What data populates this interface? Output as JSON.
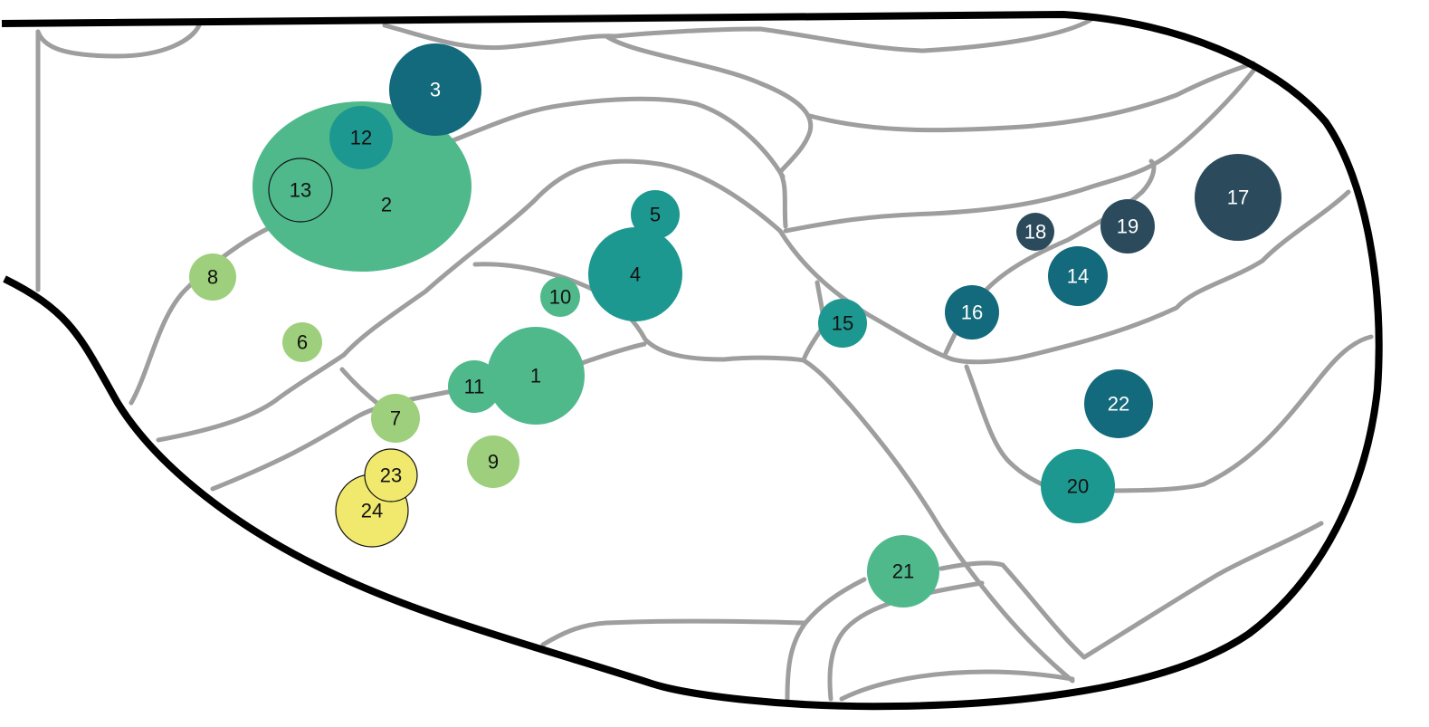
{
  "palette": {
    "road": "#9e9e9e",
    "border": "#000000",
    "background": "#ffffff"
  },
  "nodes": [
    {
      "id": "1",
      "color": "#4fb98c",
      "text_color": "#111111",
      "outlined": false
    },
    {
      "id": "2",
      "color": "#4fb98c",
      "text_color": "#111111",
      "outlined": false
    },
    {
      "id": "3",
      "color": "#136a7c",
      "text_color": "#ffffff",
      "outlined": false
    },
    {
      "id": "4",
      "color": "#1d9890",
      "text_color": "#111111",
      "outlined": false
    },
    {
      "id": "5",
      "color": "#1d9890",
      "text_color": "#111111",
      "outlined": false
    },
    {
      "id": "6",
      "color": "#9ecf7c",
      "text_color": "#111111",
      "outlined": false
    },
    {
      "id": "7",
      "color": "#9ecf7c",
      "text_color": "#111111",
      "outlined": false
    },
    {
      "id": "8",
      "color": "#9ecf7c",
      "text_color": "#111111",
      "outlined": false
    },
    {
      "id": "9",
      "color": "#9ecf7c",
      "text_color": "#111111",
      "outlined": false
    },
    {
      "id": "10",
      "color": "#4fb98c",
      "text_color": "#111111",
      "outlined": false
    },
    {
      "id": "11",
      "color": "#4fb98c",
      "text_color": "#111111",
      "outlined": false
    },
    {
      "id": "12",
      "color": "#1d9890",
      "text_color": "#111111",
      "outlined": false
    },
    {
      "id": "13",
      "color": "#4fb98c",
      "text_color": "#111111",
      "outlined": true
    },
    {
      "id": "14",
      "color": "#136a7c",
      "text_color": "#ffffff",
      "outlined": false
    },
    {
      "id": "15",
      "color": "#1d9890",
      "text_color": "#111111",
      "outlined": false
    },
    {
      "id": "16",
      "color": "#136a7c",
      "text_color": "#ffffff",
      "outlined": false
    },
    {
      "id": "17",
      "color": "#2b4b5d",
      "text_color": "#ffffff",
      "outlined": false
    },
    {
      "id": "18",
      "color": "#2b4b5d",
      "text_color": "#ffffff",
      "outlined": false
    },
    {
      "id": "19",
      "color": "#2b4b5d",
      "text_color": "#ffffff",
      "outlined": false
    },
    {
      "id": "20",
      "color": "#1d9890",
      "text_color": "#111111",
      "outlined": false
    },
    {
      "id": "21",
      "color": "#4fb98c",
      "text_color": "#111111",
      "outlined": false
    },
    {
      "id": "22",
      "color": "#136a7c",
      "text_color": "#ffffff",
      "outlined": false
    },
    {
      "id": "23",
      "color": "#f0e96e",
      "text_color": "#111111",
      "outlined": true
    },
    {
      "id": "24",
      "color": "#f0e96e",
      "text_color": "#111111",
      "outlined": true
    }
  ]
}
